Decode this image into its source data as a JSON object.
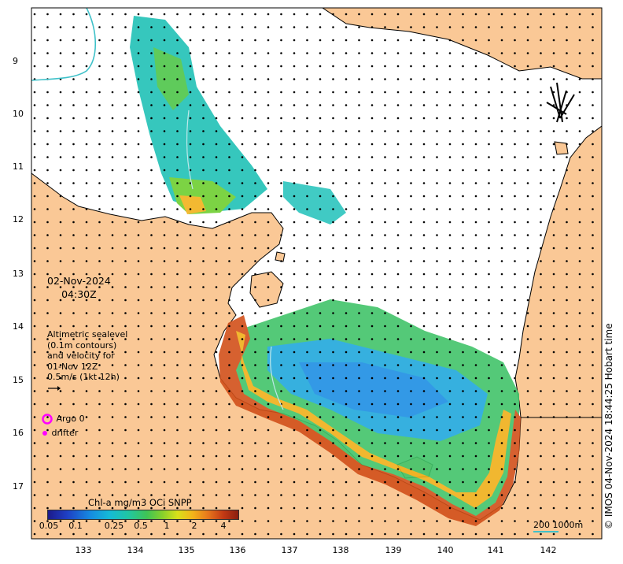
{
  "map": {
    "y_ticks": [
      "9",
      "10",
      "11",
      "12",
      "13",
      "14",
      "15",
      "16",
      "17"
    ],
    "x_ticks": [
      "133",
      "134",
      "135",
      "136",
      "137",
      "138",
      "139",
      "140",
      "141",
      "142"
    ],
    "date": "02-Nov-2024",
    "time": "04:30Z",
    "altimetry_note": [
      "Altimetric sealevel",
      "(0.1m contours)",
      "and velocity for",
      "01-Nov 12Z",
      "0.5m/s (1kt 12h)"
    ],
    "legend": {
      "argo": "Argo 0",
      "drifter": "drifter"
    },
    "colorbar": {
      "title": "Chl-a mg/m3 OCi SNPP",
      "ticks": [
        "0.05",
        "0.1",
        "0.25",
        "0.5",
        "1",
        "2",
        "4"
      ]
    },
    "scale_label": "200  1000m",
    "credit": "© IMOS 04-Nov-2024 18:44:25 Hobart time",
    "colors": {
      "land": "#fac896",
      "ocean": "#ffffff",
      "argo": "#ff00ff",
      "drifter": "#ff00ff",
      "contour": "#3fc1c9"
    }
  }
}
